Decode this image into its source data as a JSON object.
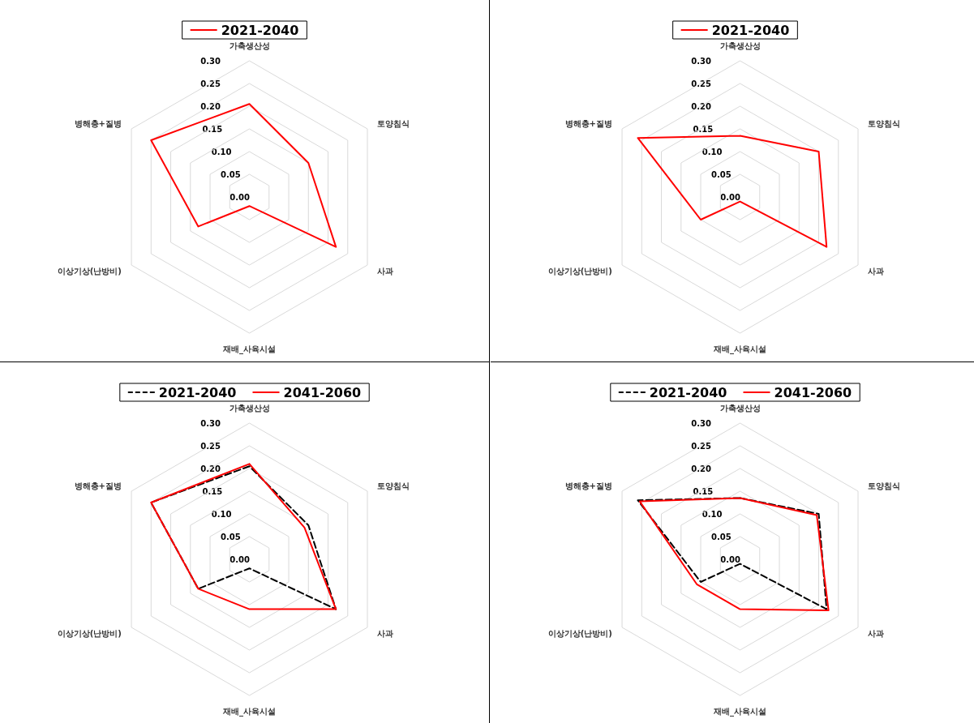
{
  "chart_data": [
    {
      "type": "radar",
      "categories": [
        "가축생산성",
        "토양침식",
        "사과",
        "재배_사육시설",
        "이상기상(난방비)",
        "병해충+질병"
      ],
      "series": [
        {
          "name": "2021-2040",
          "color": "#ff0000",
          "line_style": "solid",
          "values": [
            0.205,
            0.15,
            0.22,
            0.02,
            0.13,
            0.25
          ]
        }
      ],
      "ylim": [
        0,
        0.3
      ],
      "yticks": [
        {
          "value": 0,
          "label": "0.00"
        },
        {
          "value": 0.05,
          "label": "0.05"
        },
        {
          "value": 0.1,
          "label": "0.10"
        },
        {
          "value": 0.15,
          "label": "0.15"
        },
        {
          "value": 0.2,
          "label": "0.20"
        },
        {
          "value": 0.25,
          "label": "0.25"
        },
        {
          "value": 0.3,
          "label": "0.30"
        }
      ],
      "grid": true,
      "legend": "top",
      "marker": "none"
    },
    {
      "type": "radar",
      "categories": [
        "가축생산성",
        "토양침식",
        "사과",
        "재배_사육시설",
        "이상기상(난방비)",
        "병해충+질병"
      ],
      "series": [
        {
          "name": "2021-2040",
          "color": "#ff0000",
          "line_style": "solid",
          "values": [
            0.135,
            0.2,
            0.22,
            0.01,
            0.1,
            0.26
          ]
        }
      ],
      "ylim": [
        0,
        0.3
      ],
      "yticks": [
        {
          "value": 0,
          "label": "0.00"
        },
        {
          "value": 0.05,
          "label": "0.05"
        },
        {
          "value": 0.1,
          "label": "0.10"
        },
        {
          "value": 0.15,
          "label": "0.15"
        },
        {
          "value": 0.2,
          "label": "0.20"
        },
        {
          "value": 0.25,
          "label": "0.25"
        },
        {
          "value": 0.3,
          "label": "0.30"
        }
      ],
      "grid": true,
      "legend": "top",
      "marker": "none"
    },
    {
      "type": "radar",
      "categories": [
        "가축생산성",
        "토양침식",
        "사과",
        "재배_사육시설",
        "이상기상(난방비)",
        "병해충+질병"
      ],
      "series": [
        {
          "name": "2021-2040",
          "color": "#000000",
          "line_style": "dashed",
          "values": [
            0.205,
            0.15,
            0.22,
            0.02,
            0.13,
            0.25
          ]
        },
        {
          "name": "2041-2060",
          "color": "#ff0000",
          "line_style": "solid",
          "values": [
            0.21,
            0.14,
            0.22,
            0.11,
            0.13,
            0.25
          ]
        }
      ],
      "ylim": [
        0,
        0.3
      ],
      "yticks": [
        {
          "value": 0,
          "label": "0.00"
        },
        {
          "value": 0.05,
          "label": "0.05"
        },
        {
          "value": 0.1,
          "label": "0.10"
        },
        {
          "value": 0.15,
          "label": "0.15"
        },
        {
          "value": 0.2,
          "label": "0.20"
        },
        {
          "value": 0.25,
          "label": "0.25"
        },
        {
          "value": 0.3,
          "label": "0.30"
        }
      ],
      "grid": true,
      "legend": "top",
      "marker": "none"
    },
    {
      "type": "radar",
      "categories": [
        "가축생산성",
        "토양침식",
        "사과",
        "재배_사육시설",
        "이상기상(난방비)",
        "병해충+질병"
      ],
      "series": [
        {
          "name": "2021-2040",
          "color": "#000000",
          "line_style": "dashed",
          "values": [
            0.135,
            0.2,
            0.22,
            0.01,
            0.1,
            0.26
          ]
        },
        {
          "name": "2041-2060",
          "color": "#ff0000",
          "line_style": "solid",
          "values": [
            0.135,
            0.195,
            0.225,
            0.11,
            0.11,
            0.255
          ]
        }
      ],
      "ylim": [
        0,
        0.3
      ],
      "yticks": [
        {
          "value": 0,
          "label": "0.00"
        },
        {
          "value": 0.05,
          "label": "0.05"
        },
        {
          "value": 0.1,
          "label": "0.10"
        },
        {
          "value": 0.15,
          "label": "0.15"
        },
        {
          "value": 0.2,
          "label": "0.20"
        },
        {
          "value": 0.25,
          "label": "0.25"
        },
        {
          "value": 0.3,
          "label": "0.30"
        }
      ],
      "grid": true,
      "legend": "top",
      "marker": "none"
    }
  ]
}
